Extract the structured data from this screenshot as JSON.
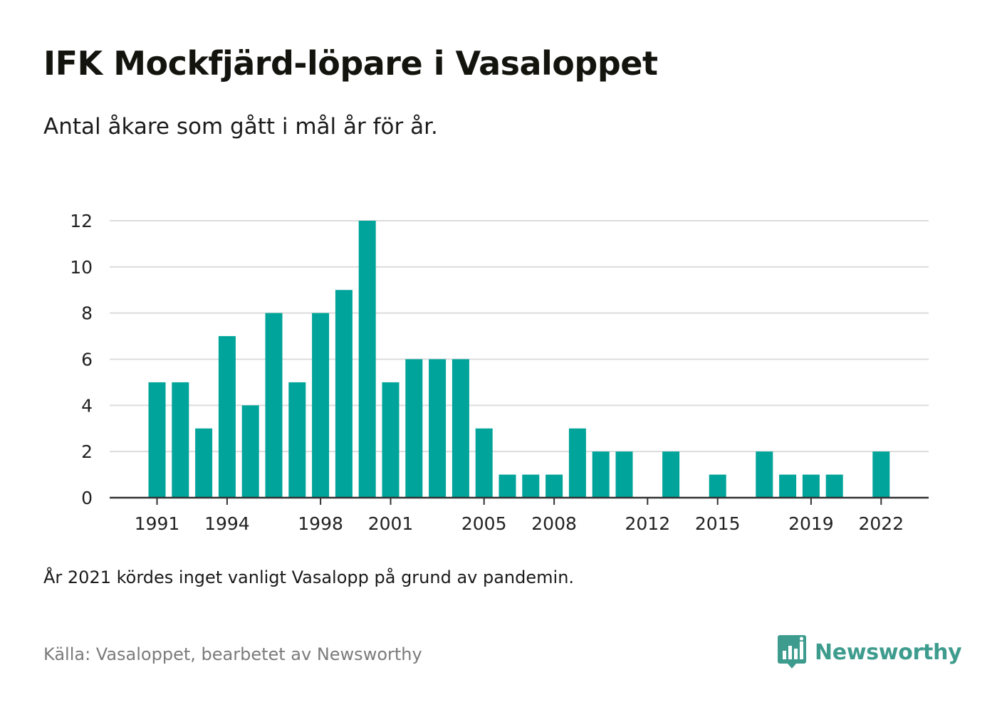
{
  "title": "IFK Mockfjärd-löpare i Vasaloppet",
  "subtitle": "Antal åkare som gått i mål år för år.",
  "note": "År 2021 kördes inget vanligt Vasalopp på grund av pandemin.",
  "source": "Källa: Vasaloppet, bearbetet av Newsworthy",
  "brand": {
    "name": "Newsworthy",
    "color": "#3e9c8e",
    "icon": "newsworthy-logo-icon"
  },
  "colors": {
    "bar": "#00a49a",
    "grid": "#dcdcdc",
    "axis": "#333333",
    "tick_text": "#222222"
  },
  "chart_data": {
    "type": "bar",
    "x": [
      1991,
      1992,
      1993,
      1994,
      1995,
      1996,
      1997,
      1998,
      1999,
      2000,
      2001,
      2002,
      2003,
      2004,
      2005,
      2006,
      2007,
      2008,
      2009,
      2010,
      2011,
      2012,
      2013,
      2014,
      2015,
      2016,
      2017,
      2018,
      2019,
      2020,
      2021,
      2022
    ],
    "values": [
      5,
      5,
      3,
      7,
      4,
      8,
      5,
      8,
      9,
      12,
      5,
      6,
      6,
      6,
      3,
      1,
      1,
      1,
      3,
      2,
      2,
      0,
      2,
      0,
      1,
      0,
      2,
      1,
      1,
      1,
      0,
      2
    ],
    "x_tick_labels": [
      "1991",
      "1994",
      "1998",
      "2001",
      "2005",
      "2008",
      "2012",
      "2015",
      "2019",
      "2022"
    ],
    "y_ticks": [
      0,
      2,
      4,
      6,
      8,
      10,
      12
    ],
    "ylim": [
      0,
      12
    ],
    "grid": true,
    "xlabel": "",
    "ylabel": ""
  }
}
